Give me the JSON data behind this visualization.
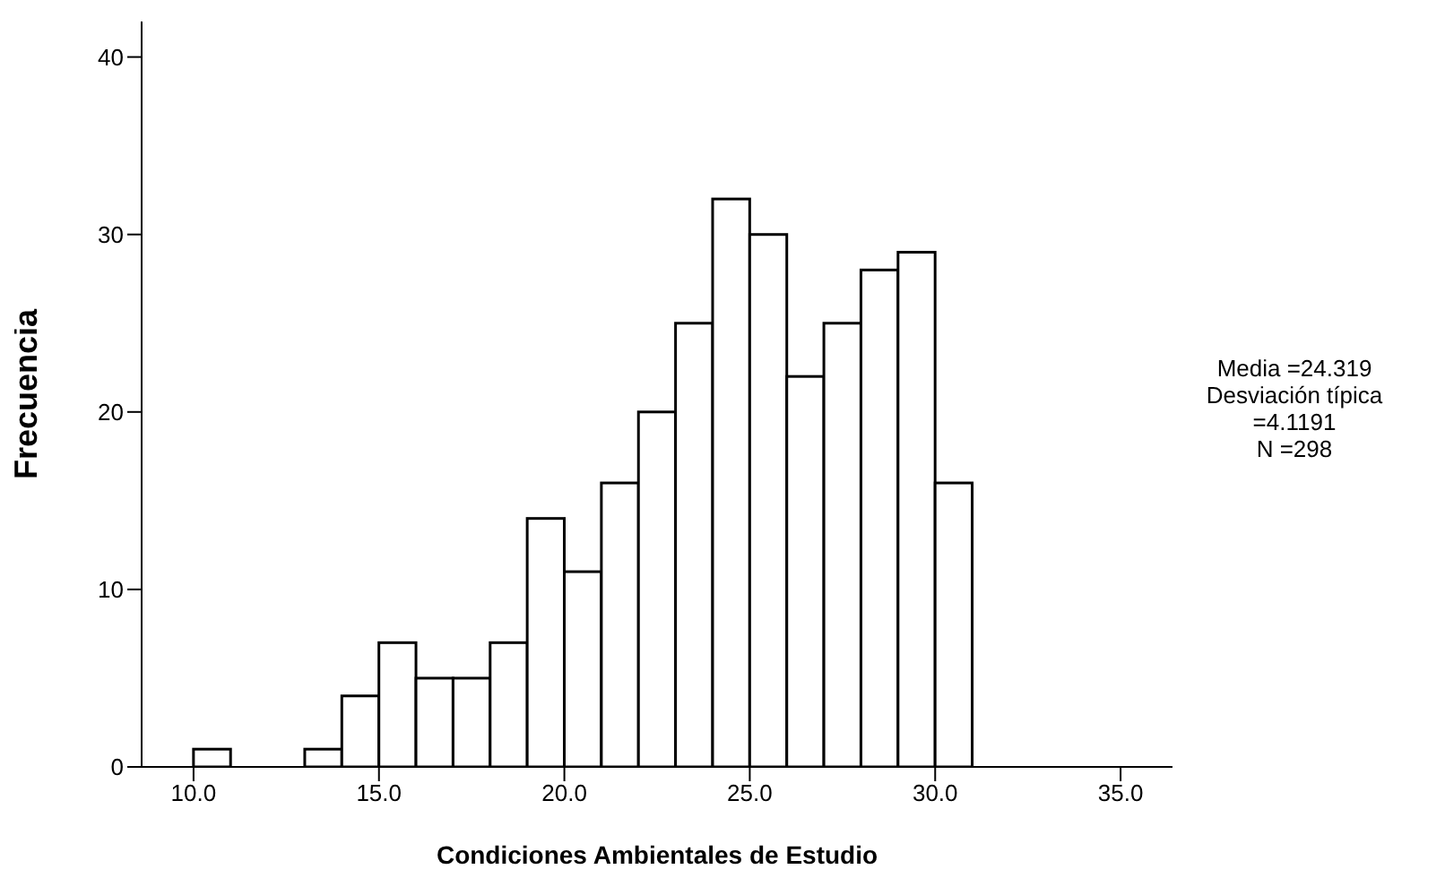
{
  "chart_data": {
    "type": "histogram",
    "xlabel": "Condiciones Ambientales de Estudio",
    "ylabel": "Frecuencia",
    "bins": [
      10,
      11,
      12,
      13,
      14,
      15,
      16,
      17,
      18,
      19,
      20,
      21,
      22,
      23,
      24,
      25,
      26,
      27,
      28,
      29,
      30,
      31
    ],
    "values": [
      1,
      0,
      0,
      1,
      4,
      7,
      5,
      5,
      7,
      14,
      11,
      16,
      20,
      25,
      32,
      30,
      22,
      25,
      28,
      29,
      16
    ],
    "color": "#ffffff",
    "xlim": [
      8.6,
      36.4
    ],
    "xticks": [
      {
        "value": 10,
        "label": "10.0"
      },
      {
        "value": 15,
        "label": "15.0"
      },
      {
        "value": 20,
        "label": "20.0"
      },
      {
        "value": 25,
        "label": "25.0"
      },
      {
        "value": 30,
        "label": "30.0"
      },
      {
        "value": 35,
        "label": "35.0"
      }
    ],
    "ylim": [
      0,
      42
    ],
    "yticks": [
      0,
      10,
      20,
      30,
      40
    ],
    "annotations": [
      "Media =24.319",
      "Desviación típica",
      "=4.1191",
      "N =298"
    ]
  }
}
